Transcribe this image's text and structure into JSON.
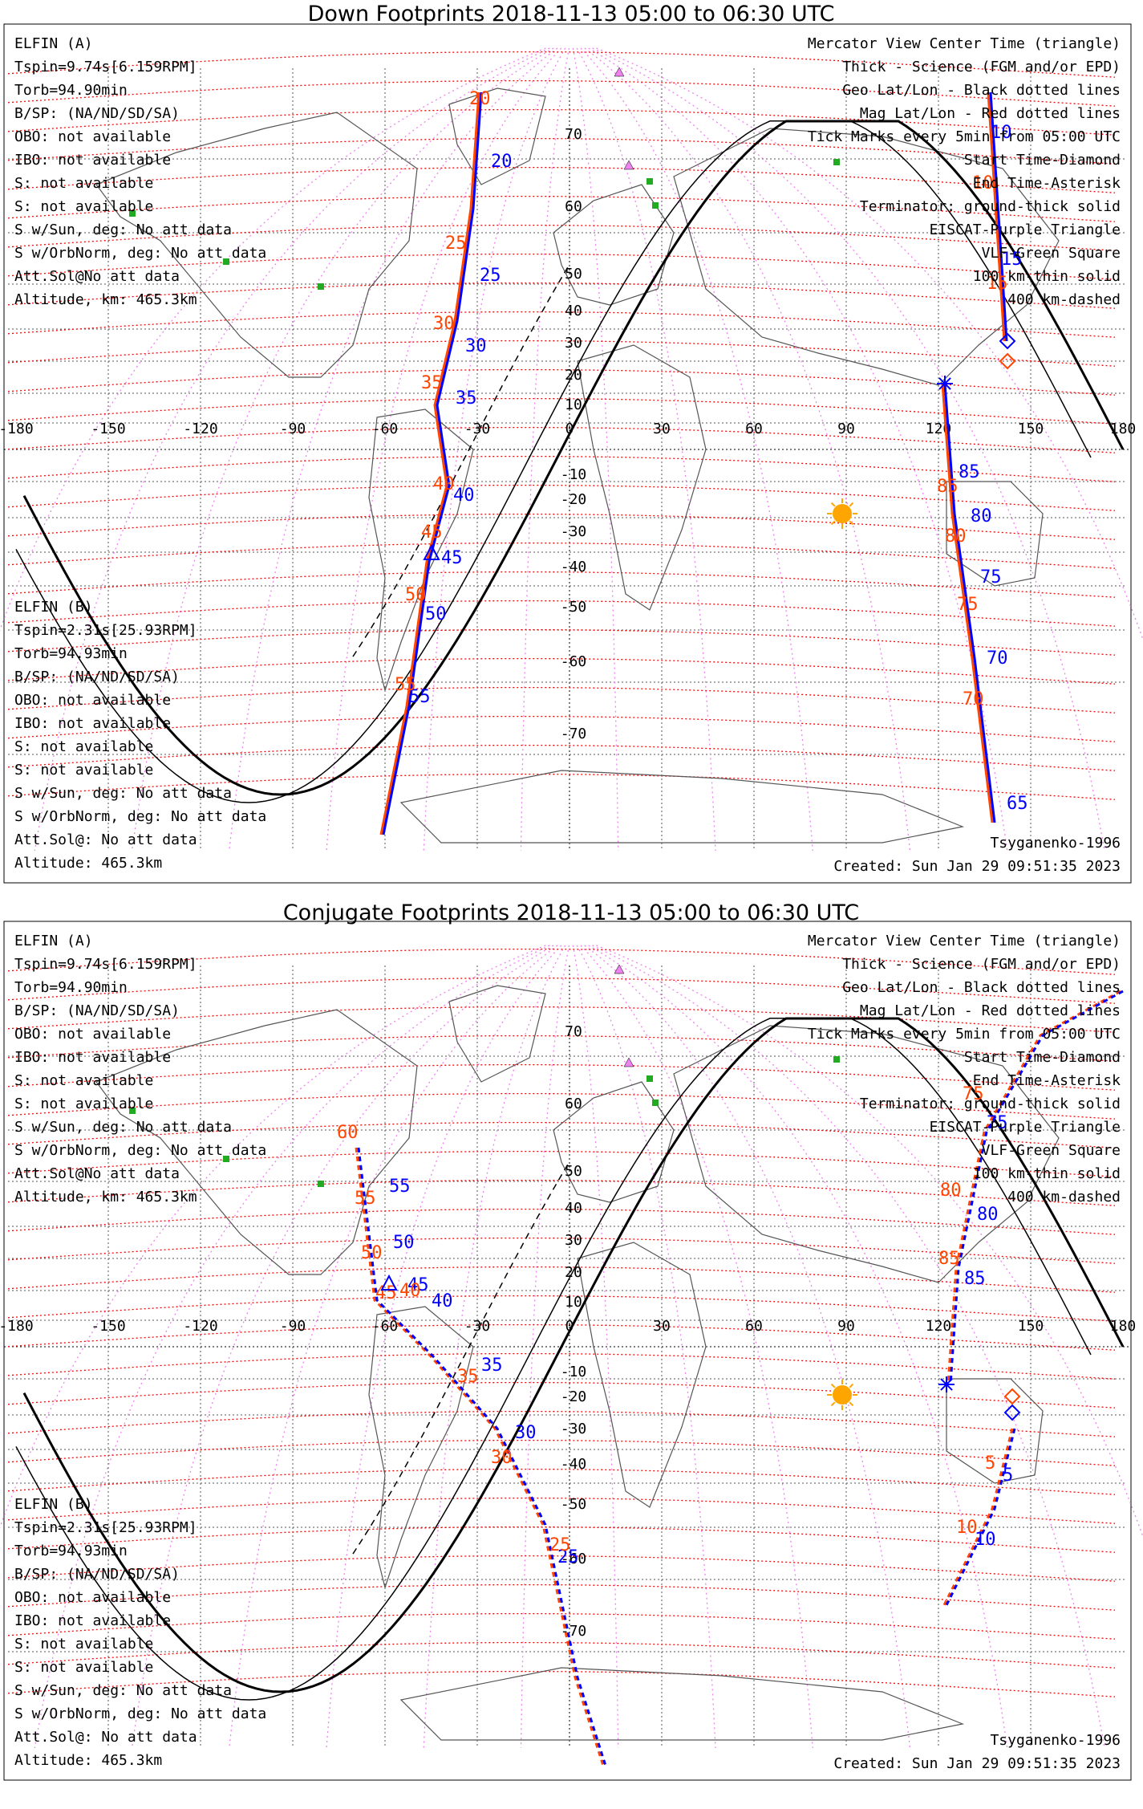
{
  "panels": [
    {
      "title": "Down Footprints 2018-11-13 05:00 to 06:30 UTC",
      "info_left_a": [
        "ELFIN (A)",
        "Tspin=9.74s[6.159RPM]",
        "Torb=94.90min",
        "B/SP: (NA/ND/SD/SA)",
        "OBO: not available",
        "IBO: not available",
        "S: not available",
        "S: not available",
        "S w/Sun, deg: No att data",
        "S w/OrbNorm, deg: No att data",
        "Att.Sol@No att data",
        "Altitude, km: 465.3km"
      ],
      "info_left_b": [
        "ELFIN (B)",
        "Tspin=2.31s[25.93RPM]",
        "Torb=94.93min",
        "B/SP: (NA/ND/SD/SA)",
        "OBO: not available",
        "IBO: not available",
        "S: not available",
        "S: not available",
        "S w/Sun, deg: No att data",
        "S w/OrbNorm, deg: No att data",
        "Att.Sol@: No att data",
        "Altitude: 465.3km"
      ],
      "model": "Tsyganenko-1996",
      "created": "Created: Sun Jan 29 09:51:35 2023",
      "track_a_labels": [
        "20",
        "25",
        "30",
        "35",
        "40",
        "45",
        "50",
        "55",
        "10",
        "15",
        "85",
        "80",
        "75",
        "70",
        "65"
      ],
      "track_b_labels": [
        "20",
        "25",
        "30",
        "35",
        "40",
        "45",
        "50",
        "55",
        "10",
        "15",
        "85",
        "80",
        "75",
        "70"
      ]
    },
    {
      "title": "Conjugate Footprints 2018-11-13 05:00 to 06:30 UTC",
      "info_left_a": [
        "ELFIN (A)",
        "Tspin=9.74s[6.159RPM]",
        "Torb=94.90min",
        "B/SP: (NA/ND/SD/SA)",
        "OBO: not available",
        "IBO: not available",
        "S: not available",
        "S: not available",
        "S w/Sun, deg: No att data",
        "S w/OrbNorm, deg: No att data",
        "Att.Sol@No att data",
        "Altitude, km: 465.3km"
      ],
      "info_left_b": [
        "ELFIN (B)",
        "Tspin=2.31s[25.93RPM]",
        "Torb=94.93min",
        "B/SP: (NA/ND/SD/SA)",
        "OBO: not available",
        "IBO: not available",
        "S: not available",
        "S: not available",
        "S w/Sun, deg: No att data",
        "S w/OrbNorm, deg: No att data",
        "Att.Sol@: No att data",
        "Altitude: 465.3km"
      ],
      "model": "Tsyganenko-1996",
      "created": "Created: Sun Jan 29 09:51:35 2023",
      "track_a_labels": [
        "55",
        "50",
        "45",
        "40",
        "35",
        "30",
        "25",
        "5",
        "10",
        "75",
        "80",
        "85"
      ],
      "track_b_labels": [
        "60",
        "55",
        "50",
        "45",
        "40",
        "35",
        "30",
        "25",
        "5",
        "10",
        "75",
        "80",
        "85"
      ]
    }
  ],
  "legend": [
    {
      "text": "Mercator View Center Time (triangle)",
      "color": "#000000"
    },
    {
      "text": "Thick - Science (FGM and/or EPD)",
      "color": "#000000"
    },
    {
      "text": "Geo Lat/Lon - Black dotted lines",
      "color": "#000000"
    },
    {
      "text": "Mag Lat/Lon - Red dotted lines",
      "color": "#ff0000"
    },
    {
      "text": "Tick Marks every 5min from 05:00 UTC",
      "color": "#000000"
    },
    {
      "text": "Start Time-Diamond",
      "color": "#000000"
    },
    {
      "text": "End Time-Asterisk",
      "color": "#000000"
    },
    {
      "text": "Terminator: ground-thick solid",
      "color": "#000000"
    },
    {
      "text": "EISCAT-Purple Triangle",
      "color": "#ee82ee"
    },
    {
      "text": "VLF-Green Square",
      "color": "#22aa22"
    },
    {
      "text": "100 km-thin solid",
      "color": "#000000"
    },
    {
      "text": "400 km-dashed",
      "color": "#000000"
    }
  ],
  "lon_ticks": [
    "-180",
    "-150",
    "-120",
    "-90",
    "-60",
    "-30",
    "0",
    "30",
    "60",
    "90",
    "120",
    "150",
    "180"
  ],
  "lat_ticks": [
    "70",
    "60",
    "50",
    "40",
    "30",
    "20",
    "10",
    "-10",
    "-20",
    "-30",
    "-40",
    "-50",
    "-60",
    "-70"
  ],
  "colors": {
    "elfin_a": "#0000ff",
    "elfin_b": "#ff4500",
    "mag_grid": "#ff0000",
    "geo_grid": "#555555",
    "mag_lon": "#ee82ee",
    "sun": "#ffa500",
    "vlf": "#22aa22"
  }
}
